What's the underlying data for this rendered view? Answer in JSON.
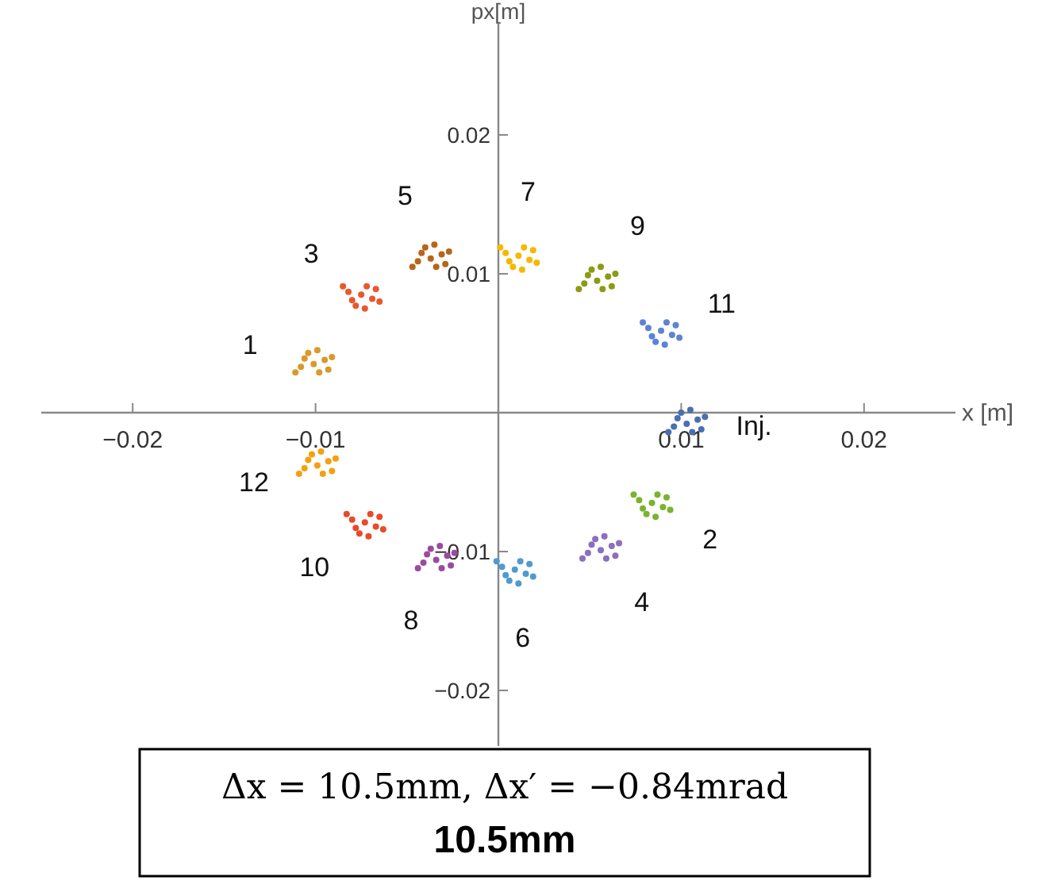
{
  "chart_data": {
    "type": "scatter",
    "xlabel": "x [m]",
    "ylabel": "px[m]",
    "xlim": [
      -0.025,
      0.025
    ],
    "ylim": [
      -0.024,
      0.028
    ],
    "xticks": [
      {
        "value": -0.02,
        "label": "−0.02"
      },
      {
        "value": -0.01,
        "label": "−0.01"
      },
      0.01,
      0.02
    ],
    "yticks": [
      {
        "value": -0.02,
        "label": "−0.02"
      },
      {
        "value": -0.01,
        "label": "−0.01"
      },
      0.01,
      0.02
    ],
    "grid": false,
    "marker": "circle",
    "series": [
      {
        "name": "1",
        "color": "#d99a2b",
        "x": [
          -0.0101,
          -0.0095,
          -0.0106,
          -0.0098,
          -0.0108,
          -0.0091,
          -0.0104,
          -0.0093,
          -0.0111,
          -0.0099
        ],
        "values": [
          0.0035,
          0.0038,
          0.0039,
          0.0029,
          0.0033,
          0.004,
          0.0043,
          0.0031,
          0.0029,
          0.0045
        ]
      },
      {
        "name": "3",
        "color": "#e8572e",
        "x": [
          -0.0075,
          -0.0069,
          -0.008,
          -0.0072,
          -0.0082,
          -0.0065,
          -0.0078,
          -0.0067,
          -0.0085,
          -0.0073
        ],
        "values": [
          0.0085,
          0.0082,
          0.0081,
          0.0091,
          0.0087,
          0.008,
          0.0077,
          0.0089,
          0.0091,
          0.0075
        ]
      },
      {
        "name": "5",
        "color": "#b8651a",
        "x": [
          -0.0037,
          -0.0031,
          -0.0042,
          -0.0034,
          -0.0044,
          -0.0027,
          -0.004,
          -0.0029,
          -0.0047,
          -0.0035
        ],
        "values": [
          0.0111,
          0.0114,
          0.0115,
          0.0105,
          0.0109,
          0.0116,
          0.0119,
          0.0107,
          0.0105,
          0.0121
        ]
      },
      {
        "name": "7",
        "color": "#f5b800",
        "x": [
          0.0011,
          0.0017,
          0.0006,
          0.0014,
          0.0004,
          0.0021,
          0.0008,
          0.0019,
          0.0001,
          0.0013
        ],
        "values": [
          0.0113,
          0.011,
          0.0109,
          0.0119,
          0.0115,
          0.0108,
          0.0105,
          0.0117,
          0.0119,
          0.0103
        ]
      },
      {
        "name": "9",
        "color": "#8c9a14",
        "x": [
          0.0054,
          0.006,
          0.0049,
          0.0057,
          0.0047,
          0.0064,
          0.0051,
          0.0062,
          0.0044,
          0.0056
        ],
        "values": [
          0.0095,
          0.0098,
          0.0099,
          0.0089,
          0.0093,
          0.01,
          0.0103,
          0.0091,
          0.0089,
          0.0105
        ]
      },
      {
        "name": "11",
        "color": "#5b84d6",
        "x": [
          0.0089,
          0.0095,
          0.0084,
          0.0092,
          0.0082,
          0.0099,
          0.0086,
          0.0097,
          0.0079,
          0.0091
        ],
        "values": [
          0.0059,
          0.0056,
          0.0055,
          0.0065,
          0.0061,
          0.0054,
          0.0051,
          0.0063,
          0.0065,
          0.0049
        ]
      },
      {
        "name": "Inj.",
        "color": "#4a6fb0",
        "x": [
          0.0103,
          0.0109,
          0.0098,
          0.0106,
          0.0096,
          0.0113,
          0.01,
          0.0111,
          0.0093,
          0.0105
        ],
        "values": [
          -0.0008,
          -0.0005,
          -0.0004,
          -0.0014,
          -0.001,
          -0.0003,
          0,
          -0.0012,
          -0.0014,
          0.0002
        ]
      },
      {
        "name": "2",
        "color": "#7ab32e",
        "x": [
          0.0084,
          0.009,
          0.0079,
          0.0087,
          0.0077,
          0.0094,
          0.0081,
          0.0092,
          0.0074,
          0.0086
        ],
        "values": [
          -0.0065,
          -0.0068,
          -0.0069,
          -0.0059,
          -0.0063,
          -0.007,
          -0.0073,
          -0.0061,
          -0.0059,
          -0.0075
        ]
      },
      {
        "name": "4",
        "color": "#8c6fbe",
        "x": [
          0.0056,
          0.0062,
          0.0051,
          0.0059,
          0.0049,
          0.0066,
          0.0053,
          0.0064,
          0.0046,
          0.0058
        ],
        "values": [
          -0.0099,
          -0.0096,
          -0.0095,
          -0.0105,
          -0.0101,
          -0.0094,
          -0.0091,
          -0.0103,
          -0.0105,
          -0.0089
        ]
      },
      {
        "name": "6",
        "color": "#4f9ad0",
        "x": [
          0.0009,
          0.0015,
          0.0004,
          0.0012,
          0.0002,
          0.0019,
          0.0006,
          0.0017,
          -0.0001,
          0.0011
        ],
        "values": [
          -0.0113,
          -0.0116,
          -0.0117,
          -0.0107,
          -0.0111,
          -0.0118,
          -0.0121,
          -0.0109,
          -0.0107,
          -0.0123
        ]
      },
      {
        "name": "8",
        "color": "#9b4aa0",
        "x": [
          -0.0034,
          -0.0028,
          -0.0039,
          -0.0031,
          -0.0041,
          -0.0024,
          -0.0037,
          -0.0026,
          -0.0044,
          -0.0032
        ],
        "values": [
          -0.0106,
          -0.0103,
          -0.0102,
          -0.0112,
          -0.0108,
          -0.0101,
          -0.0098,
          -0.011,
          -0.0112,
          -0.0096
        ]
      },
      {
        "name": "10",
        "color": "#e84a2a",
        "x": [
          -0.0073,
          -0.0067,
          -0.0078,
          -0.007,
          -0.008,
          -0.0063,
          -0.0076,
          -0.0065,
          -0.0083,
          -0.0071
        ],
        "values": [
          -0.0079,
          -0.0082,
          -0.0083,
          -0.0073,
          -0.0077,
          -0.0084,
          -0.0087,
          -0.0075,
          -0.0073,
          -0.0089
        ]
      },
      {
        "name": "12",
        "color": "#f5a010",
        "x": [
          -0.0099,
          -0.0093,
          -0.0104,
          -0.0096,
          -0.0106,
          -0.0089,
          -0.0102,
          -0.0091,
          -0.0109,
          -0.0097
        ],
        "values": [
          -0.0038,
          -0.0035,
          -0.0034,
          -0.0044,
          -0.004,
          -0.0033,
          -0.003,
          -0.0042,
          -0.0044,
          -0.0028
        ]
      }
    ],
    "annotations": [
      "Δx = 10.5mm, Δx′ = −0.84mrad",
      "10.5mm"
    ]
  }
}
